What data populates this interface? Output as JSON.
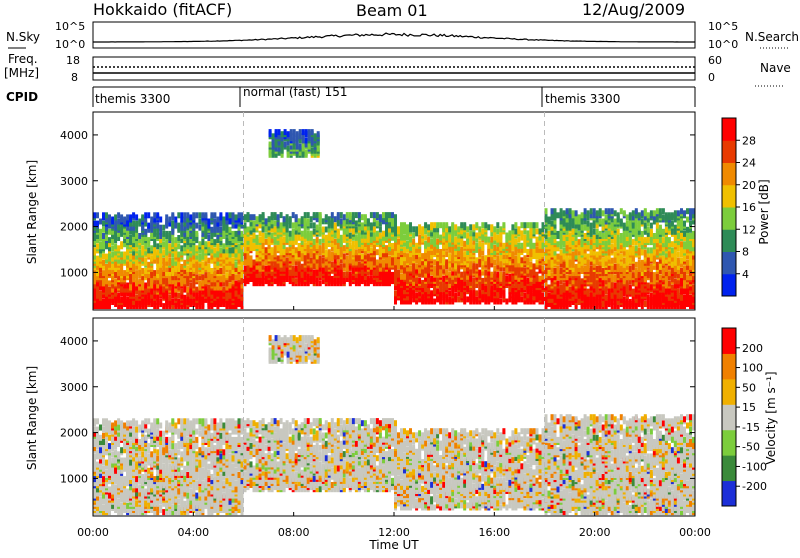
{
  "header": {
    "station": "Hokkaido (fitACF)",
    "beam": "Beam 01",
    "date": "12/Aug/2009"
  },
  "top_panels": {
    "nsky_label": "N.Sky",
    "nsky_ticks": [
      "10^5",
      "10^0"
    ],
    "nsearch_label": "N.Search",
    "nsearch_ticks": [
      "10^5",
      "10^0"
    ],
    "freq_label": "Freq.",
    "freq_unit": "[MHz]",
    "freq_ticks": [
      "18",
      "8"
    ],
    "nave_label": "Nave",
    "nave_ticks": [
      "60",
      "0"
    ],
    "cpid_label": "CPID",
    "cpid_segments": [
      {
        "label": "themis 3300",
        "start_hour": 0,
        "end_hour": 6
      },
      {
        "label": "normal (fast) 151",
        "start_hour": 6,
        "end_hour": 18
      },
      {
        "label": "themis 3300",
        "start_hour": 18,
        "end_hour": 24
      }
    ]
  },
  "x_axis": {
    "label": "Time UT",
    "ticks": [
      "00:00",
      "04:00",
      "08:00",
      "12:00",
      "16:00",
      "20:00",
      "00:00"
    ]
  },
  "panel_power": {
    "ylabel": "Slant Range [km]",
    "yticks": [
      "4000",
      "3000",
      "2000",
      "1000"
    ],
    "colorbar_label": "Power [dB]",
    "colorbar_ticks": [
      "28",
      "24",
      "20",
      "16",
      "12",
      "8",
      "4"
    ],
    "colors": [
      "#0022ee",
      "#2f57b0",
      "#2e8b57",
      "#7ccd3c",
      "#f0c000",
      "#f08a00",
      "#e83a00",
      "#ff0000"
    ]
  },
  "panel_velocity": {
    "ylabel": "Slant Range [km]",
    "yticks": [
      "4000",
      "3000",
      "2000",
      "1000"
    ],
    "colorbar_label": "Velocity [m s⁻¹]",
    "colorbar_ticks": [
      "200",
      "100",
      "50",
      "15",
      "-15",
      "-50",
      "-100",
      "-200"
    ],
    "colors": [
      "#1c2fd8",
      "#3a8a3a",
      "#7ccd3c",
      "#c8c8c0",
      "#f0b000",
      "#f08000",
      "#ff0000"
    ]
  },
  "chart_data": [
    {
      "type": "heatmap",
      "title": "Hokkaido (fitACF) Beam 01 12/Aug/2009",
      "xlabel": "Time UT",
      "ylabel": "Slant Range [km]",
      "xlim": [
        0,
        24
      ],
      "ylim": [
        180,
        4500
      ],
      "colorbar": "Power [dB]",
      "clim": [
        0,
        30
      ],
      "regions": [
        {
          "hours": [
            0,
            6
          ],
          "range_km": [
            200,
            2200
          ],
          "power_db": [
            4,
            30
          ]
        },
        {
          "hours": [
            6,
            12
          ],
          "range_km": [
            700,
            2200
          ],
          "power_db": [
            8,
            30
          ]
        },
        {
          "hours": [
            12,
            18
          ],
          "range_km": [
            300,
            2000
          ],
          "power_db": [
            12,
            30
          ]
        },
        {
          "hours": [
            18,
            24
          ],
          "range_km": [
            200,
            2300
          ],
          "power_db": [
            8,
            30
          ]
        },
        {
          "hours": [
            7,
            9
          ],
          "range_km": [
            3500,
            4000
          ],
          "power_db": [
            4,
            12
          ]
        }
      ]
    },
    {
      "type": "heatmap",
      "title": "",
      "xlabel": "Time UT",
      "ylabel": "Slant Range [km]",
      "xlim": [
        0,
        24
      ],
      "ylim": [
        180,
        4500
      ],
      "colorbar": "Velocity [m s⁻¹]",
      "clim": [
        -200,
        200
      ]
    }
  ]
}
